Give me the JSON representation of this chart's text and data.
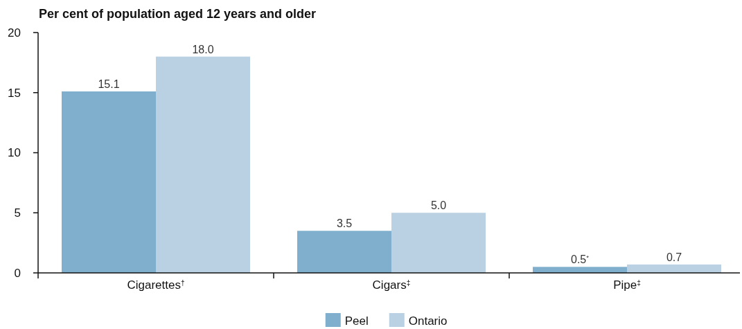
{
  "chart_data": {
    "type": "bar",
    "title": "Per cent of population aged 12 years and older",
    "categories": [
      "Cigarettes$^{†}$",
      "Cigars$^{‡}$",
      "Pipe$^{‡}$"
    ],
    "series": [
      {
        "name": "Peel",
        "color": "#7fafcc",
        "values": [
          15.1,
          3.5,
          0.5
        ],
        "value_labels": [
          "15.1",
          "3.5",
          "0.5$^{*}$"
        ]
      },
      {
        "name": "Ontario",
        "color": "#b9d1e3",
        "values": [
          18.0,
          5.0,
          0.7
        ],
        "value_labels": [
          "18.0",
          "5.0",
          "0.7"
        ]
      }
    ],
    "ylim": [
      0,
      20
    ],
    "yticks": [
      0,
      5,
      10,
      15,
      20
    ],
    "legend": "bottom"
  }
}
